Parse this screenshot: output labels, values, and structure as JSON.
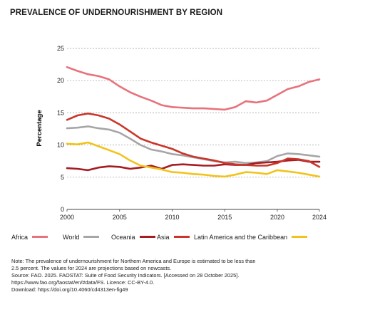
{
  "title": "PREVALENCE OF UNDERNOURISHMENT BY REGION",
  "chart_data": {
    "type": "line",
    "ylabel": "Percentage",
    "xlabel": "",
    "xlim": [
      2000,
      2024
    ],
    "ylim": [
      0,
      25
    ],
    "x_ticks": [
      2000,
      2005,
      2010,
      2015,
      2020,
      2024
    ],
    "y_ticks": [
      0,
      5,
      10,
      15,
      20,
      25
    ],
    "grid": "horizontal dashed",
    "legend_position": "bottom",
    "x": [
      2000,
      2001,
      2002,
      2003,
      2004,
      2005,
      2006,
      2007,
      2008,
      2009,
      2010,
      2011,
      2012,
      2013,
      2014,
      2015,
      2016,
      2017,
      2018,
      2019,
      2020,
      2021,
      2022,
      2023,
      2024
    ],
    "series": [
      {
        "name": "Africa",
        "color": "#e8727b",
        "values": [
          22.1,
          21.5,
          21.0,
          20.7,
          20.2,
          19.1,
          18.2,
          17.5,
          16.9,
          16.2,
          15.9,
          15.8,
          15.7,
          15.7,
          15.6,
          15.5,
          15.9,
          16.8,
          16.6,
          16.9,
          17.8,
          18.7,
          19.1,
          19.8,
          20.2
        ]
      },
      {
        "name": "World",
        "color": "#a6a6a6",
        "values": [
          12.6,
          12.7,
          12.9,
          12.6,
          12.4,
          11.9,
          11.0,
          10.0,
          9.3,
          9.0,
          8.6,
          8.4,
          8.1,
          7.8,
          7.5,
          7.3,
          7.4,
          7.2,
          7.3,
          7.5,
          8.3,
          8.7,
          8.6,
          8.4,
          8.2
        ]
      },
      {
        "name": "Oceania",
        "color": "#a51d23",
        "values": [
          6.4,
          6.3,
          6.1,
          6.5,
          6.7,
          6.6,
          6.3,
          6.5,
          6.8,
          6.3,
          6.9,
          7.0,
          6.9,
          6.8,
          6.8,
          7.0,
          6.9,
          6.9,
          7.2,
          7.3,
          7.4,
          7.6,
          7.7,
          7.4,
          7.4
        ]
      },
      {
        "name": "Asia",
        "color": "#c9372c",
        "values": [
          13.9,
          14.6,
          14.9,
          14.6,
          14.1,
          13.2,
          12.1,
          11.0,
          10.4,
          9.9,
          9.4,
          8.7,
          8.2,
          7.9,
          7.6,
          7.2,
          7.0,
          6.9,
          6.8,
          6.8,
          7.2,
          7.9,
          7.8,
          7.5,
          6.6
        ]
      },
      {
        "name": "Latin America and the Caribbean",
        "color": "#f2c31b",
        "values": [
          10.2,
          10.1,
          10.4,
          9.8,
          9.2,
          8.6,
          7.6,
          6.8,
          6.5,
          6.2,
          5.8,
          5.7,
          5.5,
          5.4,
          5.2,
          5.1,
          5.4,
          5.8,
          5.7,
          5.5,
          6.1,
          5.9,
          5.7,
          5.4,
          5.1
        ]
      }
    ]
  },
  "notes": [
    "Note: The prevalence of undernourishment for Northern America and Europe is estimated to be less than",
    "2.5 percent. The values for 2024 are projections based on nowcasts.",
    "Source: FAO. 2025. FAOSTAT: Suite of Food Security Indicators. [Accessed on 28 October 2025].",
    "https://www.fao.org/faostat/en/#data/FS. Licence: CC-BY-4.0.",
    "Download: https://doi.org/10.4060/cd4313en-fig49"
  ]
}
